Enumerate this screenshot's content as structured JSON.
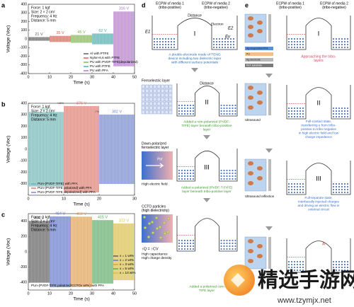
{
  "chart_data": [
    {
      "type": "line",
      "panel": "a",
      "info": [
        "Force: 1 kgf",
        "Size: 2 × 2 cm²",
        "Frequency: 4 Hz",
        "Distance: 5 mm"
      ],
      "xlabel": "Time (s)",
      "ylabel": "Voltage (Voc)",
      "xlim": [
        0,
        50
      ],
      "xticks": [
        0,
        10,
        20,
        30,
        40,
        50
      ],
      "ylim": [
        -400,
        400
      ],
      "yticks": [
        -400,
        -300,
        -200,
        -100,
        0,
        100,
        200,
        300,
        400
      ],
      "legend": "lower right",
      "series": [
        {
          "name": "Al with PTFE",
          "color": "#555555",
          "xrange": [
            0,
            10
          ],
          "value": 21,
          "value_label": "21 V"
        },
        {
          "name": "Nylon-6,6 with PTFE",
          "color": "#e8504a",
          "xrange": [
            10,
            20
          ],
          "value": 35,
          "value_label": "35 V"
        },
        {
          "name": "PU with PVDF-TrFE(depolarized)",
          "color": "#7bb33a",
          "xrange": [
            20,
            30
          ],
          "value": 45,
          "value_label": "45 V"
        },
        {
          "name": "PU with PTFE",
          "color": "#3aaea8",
          "xrange": [
            30,
            40
          ],
          "value": 62,
          "value_label": "62 V"
        },
        {
          "name": "PU with PFA",
          "color": "#b070d0",
          "xrange": [
            40,
            50
          ],
          "value": 316,
          "value_label": "316 V"
        }
      ]
    },
    {
      "type": "line",
      "panel": "b",
      "info": [
        "Force: 1 kgf",
        "Size: 2 × 2 cm²",
        "Frequency: 4 Hz",
        "Distance: 5 mm"
      ],
      "xlabel": "Time (s)",
      "ylabel": "Voltage (Voc)",
      "xlim": [
        0,
        30
      ],
      "xticks": [
        0,
        10,
        20,
        30
      ],
      "ylim": [
        -400,
        400
      ],
      "yticks": [
        -300,
        -200,
        -100,
        0,
        100,
        200,
        300,
        400
      ],
      "legend": "lower left",
      "annotations": [
        "+16%",
        "-7%"
      ],
      "series": [
        {
          "name": "PUn-(PVDF-TrFE) with PFA",
          "color": "#5fb7b0",
          "xrange": [
            0,
            10
          ],
          "value": 324,
          "value_label": "324 V"
        },
        {
          "name": "PUn-(PVDF-TrFE polarized) with PFA",
          "color": "#e8706a",
          "xrange": [
            10,
            20
          ],
          "value": 376,
          "value_label": "376 V"
        },
        {
          "name": "PUn-(PVDF-TrFE depolarized) with PFA",
          "color": "#6b7fd8",
          "xrange": [
            20,
            30
          ],
          "value": 302,
          "value_label": "302 V"
        }
      ]
    },
    {
      "type": "line",
      "panel": "c",
      "info": [
        "Force: 1 kgf",
        "Size: 2 × 2 cm²",
        "Frequency: 4 Hz",
        "Distance: 5 mm"
      ],
      "xlabel": "Time (s)",
      "ylabel": "Voltage (Voc)",
      "xlim": [
        0,
        50
      ],
      "xticks": [
        0,
        10,
        20,
        30,
        40,
        50
      ],
      "ylim": [
        -500,
        500
      ],
      "yticks": [
        -400,
        -200,
        0,
        200,
        400
      ],
      "legend": "right",
      "note": "PUn-(PVDF-TrFE polarized/CCTOx wt%) with PFA",
      "series": [
        {
          "name": "x = 1 wt%",
          "color": "#555555",
          "xrange": [
            0,
            10
          ],
          "value": 404,
          "value_label": "404 V"
        },
        {
          "name": "x = 2 wt%",
          "color": "#5b6fd6",
          "xrange": [
            10,
            20
          ],
          "value": 464,
          "value_label": "464 V"
        },
        {
          "name": "x = 3 wt%",
          "color": "#e89a3a",
          "xrange": [
            20,
            30
          ],
          "value": 460,
          "value_label": "460 V"
        },
        {
          "name": "x = 5 wt%",
          "color": "#4caf50",
          "xrange": [
            30,
            40
          ],
          "value": 415,
          "value_label": "415 V"
        },
        {
          "name": "x = 10 wt%",
          "color": "#d8c030",
          "xrange": [
            40,
            50
          ],
          "value": 372,
          "value_label": "372 V"
        }
      ]
    }
  ],
  "panel_d": {
    "label": "d",
    "media1": [
      "ECPW of media 1",
      "(tribo-positive)"
    ],
    "media2": [
      "ECPW of media 2",
      "(tribo-negative)"
    ],
    "stages": [
      {
        "numeral": "I",
        "distance": "Distance",
        "energy_labels": [
          "E1",
          "E2",
          "Ev"
        ],
        "electron": "Electron",
        "caption": [
          "A double-electrode mode of TENG",
          "device including two dielectric layer",
          "with different surface potentials"
        ]
      },
      {
        "numeral": "II",
        "distance": "Distance",
        "layer": [
          "Ferroelectric layer"
        ],
        "caption": [
          "Added a non-polarized (PVDF-",
          "TrFE) layer beneath tribo-positive",
          "layer"
        ]
      },
      {
        "numeral": "III",
        "layer": [
          "Down-polarized",
          "ferroelectric layer"
        ],
        "pol": "Pol",
        "field": "High electric field",
        "caption": [
          "Added a polarized (PVDF-T-FrFE)",
          "layer beneath tribo-positive layer"
        ]
      },
      {
        "layer": [
          "CCTO particles",
          "(high dielectricity)"
        ],
        "formula": "↑Q = ↑CV",
        "notes": [
          "High capacitance",
          "High charge density"
        ],
        "caption": [
          "Added a polarized corn",
          "TrFE layer"
        ]
      }
    ]
  },
  "panel_e": {
    "label": "e",
    "media1": [
      "ECPW of media 1",
      "(tribo-positive)"
    ],
    "media2": [
      "ECPW of media 2",
      "(tribo-negative)"
    ],
    "stages": [
      {
        "numeral": "I",
        "caption": [
          "Approaching the tribo-",
          "layers"
        ],
        "stack": [
          "Ag-evaporated PFA",
          "PU",
          "Ag electrode",
          "PET substrate"
        ]
      },
      {
        "numeral": "II",
        "tag": "Ultrasound",
        "caption": [
          "Full-contact state,",
          "transferring e from tribo-",
          "positive to tribo-negative",
          "in high electric field and low",
          "charge impedance"
        ]
      },
      {
        "numeral": "III",
        "tag": "Ultrasound reflection",
        "caption": [
          "Full-separate state,",
          "interfacially injected charges",
          "and driving an electric flow in",
          "external circuit"
        ]
      },
      {
        "tag": "Ar"
      }
    ]
  },
  "watermark": {
    "text": "精选手游网",
    "url": "www.tzymjx.net"
  }
}
